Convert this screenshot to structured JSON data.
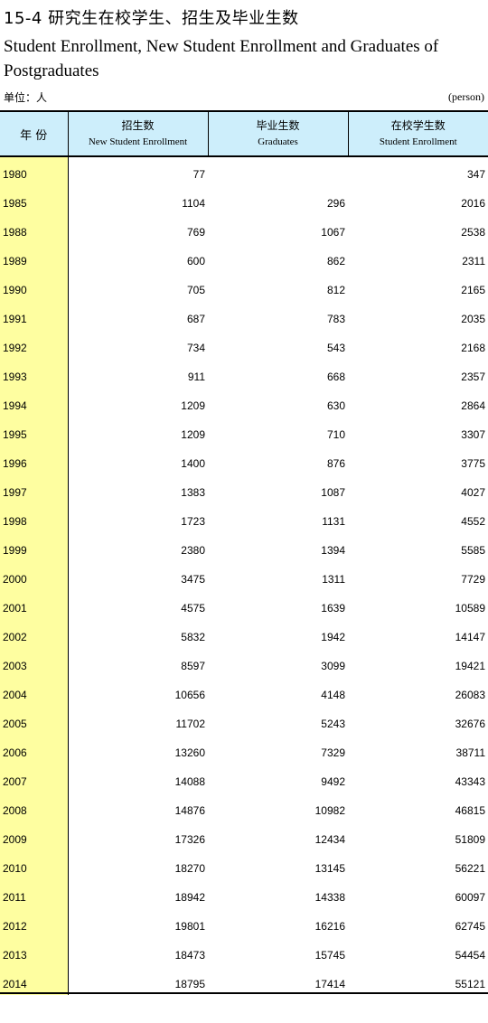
{
  "title_cn": "15-4  研究生在校学生、招生及毕业生数",
  "title_en": "Student Enrollment, New Student Enrollment and Graduates of Postgraduates",
  "unit_cn": "单位：人",
  "unit_en": "(person)",
  "header": {
    "year": "年 份",
    "new_cn": "招生数",
    "new_en": "New Student Enrollment",
    "grad_cn": "毕业生数",
    "grad_en": "Graduates",
    "enroll_cn": "在校学生数",
    "enroll_en": "Student Enrollment"
  },
  "rows": [
    {
      "year": "1980",
      "new": "77",
      "grad": "",
      "enroll": "347"
    },
    {
      "year": "1985",
      "new": "1104",
      "grad": "296",
      "enroll": "2016"
    },
    {
      "year": "1988",
      "new": "769",
      "grad": "1067",
      "enroll": "2538"
    },
    {
      "year": "1989",
      "new": "600",
      "grad": "862",
      "enroll": "2311"
    },
    {
      "year": "1990",
      "new": "705",
      "grad": "812",
      "enroll": "2165"
    },
    {
      "year": "1991",
      "new": "687",
      "grad": "783",
      "enroll": "2035"
    },
    {
      "year": "1992",
      "new": "734",
      "grad": "543",
      "enroll": "2168"
    },
    {
      "year": "1993",
      "new": "911",
      "grad": "668",
      "enroll": "2357"
    },
    {
      "year": "1994",
      "new": "1209",
      "grad": "630",
      "enroll": "2864"
    },
    {
      "year": "1995",
      "new": "1209",
      "grad": "710",
      "enroll": "3307"
    },
    {
      "year": "1996",
      "new": "1400",
      "grad": "876",
      "enroll": "3775"
    },
    {
      "year": "1997",
      "new": "1383",
      "grad": "1087",
      "enroll": "4027"
    },
    {
      "year": "1998",
      "new": "1723",
      "grad": "1131",
      "enroll": "4552"
    },
    {
      "year": "1999",
      "new": "2380",
      "grad": "1394",
      "enroll": "5585"
    },
    {
      "year": "2000",
      "new": "3475",
      "grad": "1311",
      "enroll": "7729"
    },
    {
      "year": "2001",
      "new": "4575",
      "grad": "1639",
      "enroll": "10589"
    },
    {
      "year": "2002",
      "new": "5832",
      "grad": "1942",
      "enroll": "14147"
    },
    {
      "year": "2003",
      "new": "8597",
      "grad": "3099",
      "enroll": "19421"
    },
    {
      "year": "2004",
      "new": "10656",
      "grad": "4148",
      "enroll": "26083"
    },
    {
      "year": "2005",
      "new": "11702",
      "grad": "5243",
      "enroll": "32676"
    },
    {
      "year": "2006",
      "new": "13260",
      "grad": "7329",
      "enroll": "38711"
    },
    {
      "year": "2007",
      "new": "14088",
      "grad": "9492",
      "enroll": "43343"
    },
    {
      "year": "2008",
      "new": "14876",
      "grad": "10982",
      "enroll": "46815"
    },
    {
      "year": "2009",
      "new": "17326",
      "grad": "12434",
      "enroll": "51809"
    },
    {
      "year": "2010",
      "new": "18270",
      "grad": "13145",
      "enroll": "56221"
    },
    {
      "year": "2011",
      "new": "18942",
      "grad": "14338",
      "enroll": "60097"
    },
    {
      "year": "2012",
      "new": "19801",
      "grad": "16216",
      "enroll": "62745"
    },
    {
      "year": "2013",
      "new": "18473",
      "grad": "15745",
      "enroll": "54454"
    },
    {
      "year": "2014",
      "new": "18795",
      "grad": "17414",
      "enroll": "55121"
    }
  ]
}
